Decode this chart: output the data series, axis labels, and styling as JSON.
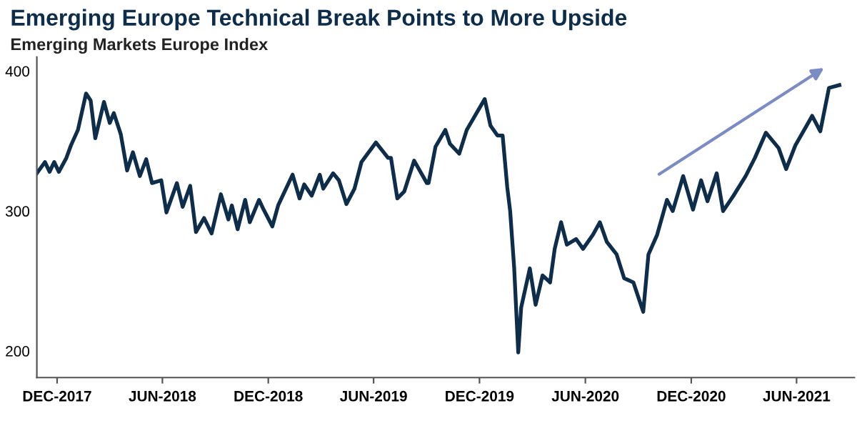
{
  "chart_data": {
    "type": "line",
    "title": "Emerging Europe Technical Break Points to More Upside",
    "subtitle": "Emerging Markets Europe Index",
    "series": [
      {
        "color": "#0d2d4a",
        "x": [
          "2017-10-27",
          "2017-11-10",
          "2017-11-18",
          "2017-11-26",
          "2017-12-04",
          "2017-12-17",
          "2017-12-25",
          "2018-01-06",
          "2018-01-20",
          "2018-01-28",
          "2018-02-05",
          "2018-02-20",
          "2018-03-02",
          "2018-03-09",
          "2018-03-21",
          "2018-04-01",
          "2018-04-11",
          "2018-04-23",
          "2018-05-04",
          "2018-05-14",
          "2018-05-30",
          "2018-06-08",
          "2018-06-26",
          "2018-07-06",
          "2018-07-19",
          "2018-07-29",
          "2018-08-12",
          "2018-08-25",
          "2018-09-10",
          "2018-09-23",
          "2018-09-29",
          "2018-10-09",
          "2018-10-22",
          "2018-10-30",
          "2018-11-15",
          "2018-11-23",
          "2018-12-08",
          "2018-12-18",
          "2019-01-12",
          "2019-01-24",
          "2019-02-01",
          "2019-02-14",
          "2019-02-28",
          "2019-03-06",
          "2019-03-23",
          "2019-04-02",
          "2019-04-15",
          "2019-04-29",
          "2019-05-11",
          "2019-06-05",
          "2019-06-26",
          "2019-07-01",
          "2019-07-12",
          "2019-07-24",
          "2019-08-10",
          "2019-09-01",
          "2019-09-04",
          "2019-09-16",
          "2019-10-03",
          "2019-10-11",
          "2019-10-27",
          "2019-11-09",
          "2019-12-10",
          "2019-12-20",
          "2020-01-01",
          "2020-01-10",
          "2020-01-18",
          "2020-01-23",
          "2020-01-30",
          "2020-02-06",
          "2020-02-11",
          "2020-02-26",
          "2020-03-07",
          "2020-03-19",
          "2020-04-01",
          "2020-04-09",
          "2020-04-20",
          "2020-04-30",
          "2020-05-16",
          "2020-05-28",
          "2020-06-14",
          "2020-06-26",
          "2020-07-08",
          "2020-07-25",
          "2020-08-07",
          "2020-08-23",
          "2020-09-09",
          "2020-09-18",
          "2020-10-03",
          "2020-10-20",
          "2020-10-30",
          "2020-11-17",
          "2020-12-04",
          "2020-12-18",
          "2020-12-29",
          "2021-01-14",
          "2021-01-25",
          "2021-02-12",
          "2021-03-05",
          "2021-03-21",
          "2021-04-09",
          "2021-05-01",
          "2021-05-14",
          "2021-05-30",
          "2021-06-28",
          "2021-07-12",
          "2021-07-27",
          "2021-08-14"
        ],
        "values": [
          327,
          335,
          328,
          335,
          328,
          338,
          347,
          358,
          384,
          379,
          352,
          378,
          363,
          370,
          355,
          329,
          342,
          325,
          337,
          320,
          322,
          299,
          320,
          303,
          318,
          285,
          295,
          284,
          312,
          294,
          304,
          287,
          308,
          292,
          308,
          301,
          289,
          304,
          326,
          309,
          319,
          311,
          326,
          316,
          327,
          322,
          305,
          316,
          335,
          349,
          338,
          338,
          309,
          314,
          336,
          320,
          320,
          346,
          358,
          348,
          341,
          358,
          380,
          361,
          354,
          354,
          317,
          300,
          259,
          199,
          231,
          259,
          233,
          254,
          249,
          273,
          292,
          276,
          280,
          273,
          283,
          292,
          278,
          269,
          252,
          249,
          228,
          269,
          283,
          308,
          300,
          325,
          301,
          322,
          307,
          327,
          300,
          311,
          325,
          338,
          356,
          345,
          330,
          347,
          368,
          357,
          388,
          390
        ]
      }
    ],
    "xlim": [
      "2017-10-27",
      "2021-09-09"
    ],
    "xticks": [
      {
        "value": "2017-12-01",
        "label": "DEC-2017"
      },
      {
        "value": "2018-06-01",
        "label": "JUN-2018"
      },
      {
        "value": "2018-12-01",
        "label": "DEC-2018"
      },
      {
        "value": "2019-06-01",
        "label": "JUN-2019"
      },
      {
        "value": "2019-12-01",
        "label": "DEC-2019"
      },
      {
        "value": "2020-06-01",
        "label": "JUN-2020"
      },
      {
        "value": "2020-12-01",
        "label": "DEC-2020"
      },
      {
        "value": "2021-06-01",
        "label": "JUN-2021"
      }
    ],
    "ylim": [
      181,
      410
    ],
    "yticks": [
      200,
      300,
      400
    ],
    "grid": false,
    "marker": "none",
    "line_style": "solid"
  }
}
